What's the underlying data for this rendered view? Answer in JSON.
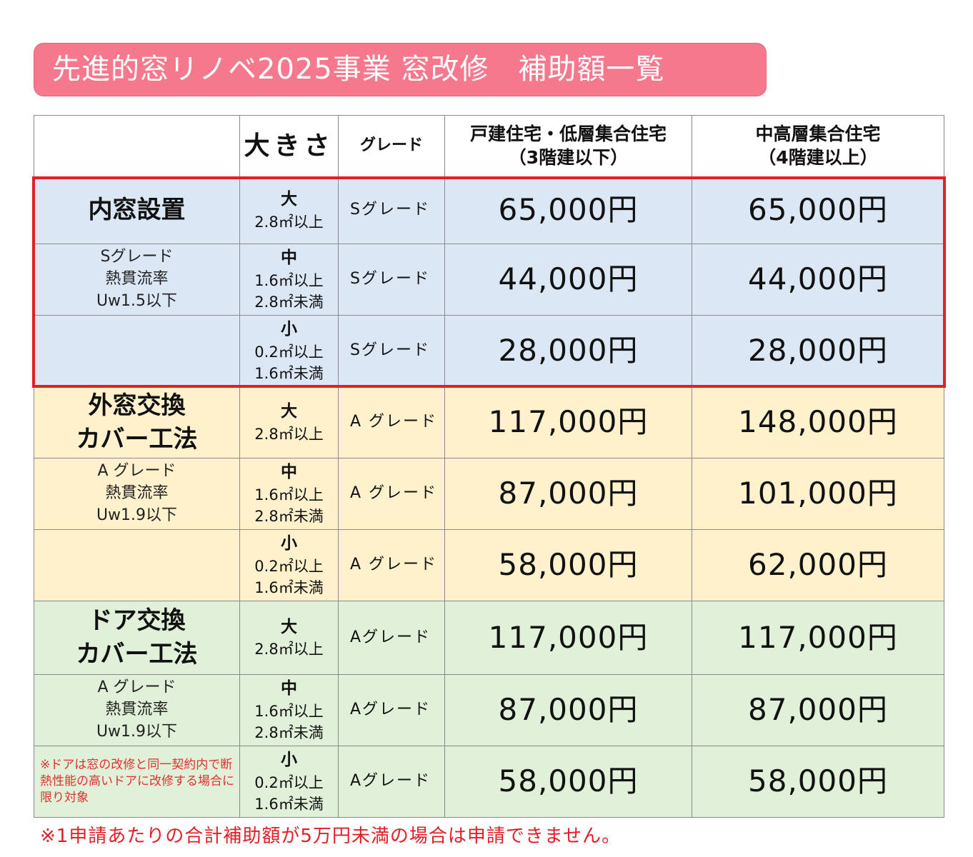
{
  "title": "先進的窓リノベ2025事業 窓改修　補助額一覧",
  "header": {
    "category": "",
    "size": "大きさ",
    "grade": "グレード",
    "col1_line1": "戸建住宅・低層集合住宅",
    "col1_line2": "（3階建以下）",
    "col2_line1": "中高層集合住宅",
    "col2_line2": "（4階建以上）"
  },
  "groups": [
    {
      "title_lines": [
        "内窓設置"
      ],
      "desc_lines": [
        "Sグレード",
        "熱貫流率",
        "Uw1.5以下"
      ],
      "note": "",
      "rows": [
        {
          "size_label": "大",
          "size_range": [
            "2.8㎡以上"
          ],
          "grade": "Sグレード",
          "price1": "65,000円",
          "price2": "65,000円"
        },
        {
          "size_label": "中",
          "size_range": [
            "1.6㎡以上",
            "2.8㎡未満"
          ],
          "grade": "Sグレード",
          "price1": "44,000円",
          "price2": "44,000円"
        },
        {
          "size_label": "小",
          "size_range": [
            "0.2㎡以上",
            "1.6㎡未満"
          ],
          "grade": "Sグレード",
          "price1": "28,000円",
          "price2": "28,000円"
        }
      ]
    },
    {
      "title_lines": [
        "外窓交換",
        "カバー工法"
      ],
      "desc_lines": [
        "A グレード",
        "熱貫流率",
        "Uw1.9以下"
      ],
      "note": "",
      "rows": [
        {
          "size_label": "大",
          "size_range": [
            "2.8㎡以上"
          ],
          "grade": "A グレード",
          "price1": "117,000円",
          "price2": "148,000円"
        },
        {
          "size_label": "中",
          "size_range": [
            "1.6㎡以上",
            "2.8㎡未満"
          ],
          "grade": "A グレード",
          "price1": "87,000円",
          "price2": "101,000円"
        },
        {
          "size_label": "小",
          "size_range": [
            "0.2㎡以上",
            "1.6㎡未満"
          ],
          "grade": "A グレード",
          "price1": "58,000円",
          "price2": "62,000円"
        }
      ]
    },
    {
      "title_lines": [
        "ドア交換",
        "カバー工法"
      ],
      "desc_lines": [
        "A グレード",
        "熱貫流率",
        "Uw1.9以下"
      ],
      "note": "※ドアは窓の改修と同一契約内で断熱性能の高いドアに改修する場合に限り対象",
      "rows": [
        {
          "size_label": "大",
          "size_range": [
            "2.8㎡以上"
          ],
          "grade": "Aグレード",
          "price1": "117,000円",
          "price2": "117,000円"
        },
        {
          "size_label": "中",
          "size_range": [
            "1.6㎡以上",
            "2.8㎡未満"
          ],
          "grade": "Aグレード",
          "price1": "87,000円",
          "price2": "87,000円"
        },
        {
          "size_label": "小",
          "size_range": [
            "0.2㎡以上",
            "1.6㎡未満"
          ],
          "grade": "Aグレード",
          "price1": "58,000円",
          "price2": "58,000円"
        }
      ]
    }
  ],
  "footnote": "※1申請あたりの合計補助額が5万円未満の場合は申請できません。",
  "colors": {
    "title_bg": "#f5788c",
    "window_inner_bg": "#dce7f5",
    "window_outer_bg": "#fff1cc",
    "door_bg": "#e1f0d8",
    "highlight_frame": "#e01f26"
  }
}
